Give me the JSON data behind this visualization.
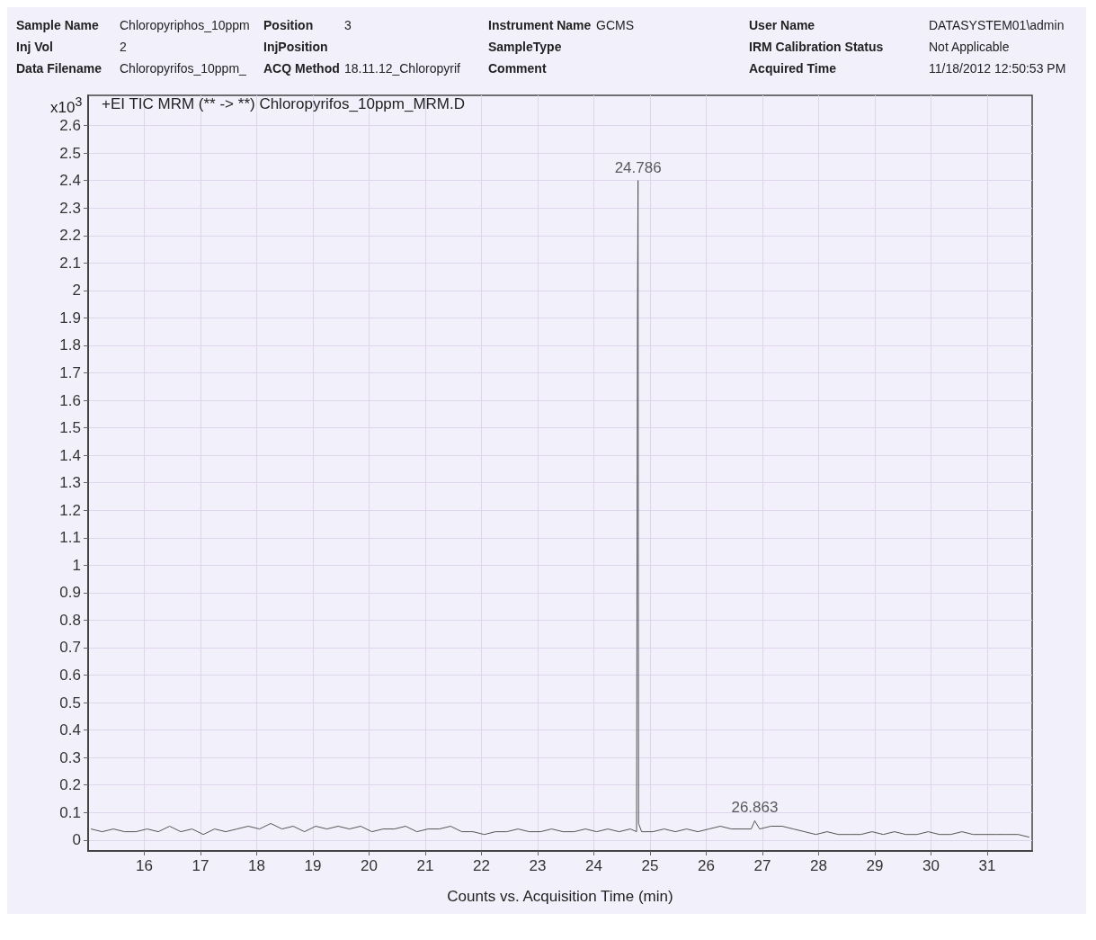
{
  "chart_data": {
    "type": "line",
    "title": "+EI TIC MRM (** -> **) Chloropyrifos_10ppm_MRM.D",
    "xlabel": "Counts vs. Acquisition Time (min)",
    "ylabel": "x10$^{3}$",
    "annotations": [
      "Sample Name",
      "Chloropyriphos_10ppm",
      "Position",
      "3",
      "Instrument Name",
      "GCMS",
      "User Name",
      "DATASYSTEM01\\admin",
      "Inj Vol",
      "2",
      "InjPosition",
      "SampleType",
      "IRM Calibration Status",
      "Not Applicable",
      "Data Filename",
      "Chloropyrifos_10ppm_",
      "ACQ Method",
      "18.11.12_Chloropyrif",
      "Comment",
      "Acquired Time",
      "11/18/2012 12:50:53 PM",
      {
        "text": "24.786",
        "x": 24.786,
        "y": 2.4
      },
      {
        "text": "26.863",
        "x": 26.863,
        "y": 0.07
      }
    ],
    "series": [
      {
        "color": "#555555",
        "x": [
          15.05,
          15.25,
          15.45,
          15.65,
          15.85,
          16.05,
          16.25,
          16.45,
          16.65,
          16.85,
          17.05,
          17.25,
          17.45,
          17.65,
          17.85,
          18.05,
          18.25,
          18.45,
          18.65,
          18.85,
          19.05,
          19.25,
          19.45,
          19.65,
          19.85,
          20.05,
          20.25,
          20.45,
          20.65,
          20.85,
          21.05,
          21.25,
          21.45,
          21.65,
          21.85,
          22.05,
          22.25,
          22.45,
          22.65,
          22.85,
          23.05,
          23.25,
          23.45,
          23.65,
          23.85,
          24.05,
          24.25,
          24.45,
          24.65,
          24.76,
          24.776,
          24.786,
          24.796,
          24.85,
          25.05,
          25.25,
          25.45,
          25.65,
          25.85,
          26.05,
          26.25,
          26.45,
          26.65,
          26.8,
          26.863,
          26.95,
          27.15,
          27.35,
          27.55,
          27.75,
          27.95,
          28.15,
          28.35,
          28.55,
          28.75,
          28.95,
          29.15,
          29.35,
          29.55,
          29.75,
          29.95,
          30.15,
          30.35,
          30.55,
          30.75,
          30.95,
          31.15,
          31.35,
          31.55,
          31.75
        ],
        "values": [
          0.04,
          0.03,
          0.04,
          0.03,
          0.03,
          0.04,
          0.03,
          0.05,
          0.03,
          0.04,
          0.02,
          0.04,
          0.03,
          0.04,
          0.05,
          0.04,
          0.06,
          0.04,
          0.05,
          0.03,
          0.05,
          0.04,
          0.05,
          0.04,
          0.05,
          0.03,
          0.04,
          0.04,
          0.05,
          0.03,
          0.04,
          0.04,
          0.05,
          0.03,
          0.03,
          0.02,
          0.03,
          0.03,
          0.04,
          0.03,
          0.03,
          0.04,
          0.03,
          0.03,
          0.04,
          0.03,
          0.04,
          0.03,
          0.04,
          0.03,
          1.9,
          2.4,
          0.06,
          0.03,
          0.03,
          0.04,
          0.03,
          0.04,
          0.03,
          0.04,
          0.05,
          0.04,
          0.04,
          0.04,
          0.07,
          0.04,
          0.05,
          0.05,
          0.04,
          0.03,
          0.02,
          0.03,
          0.02,
          0.02,
          0.02,
          0.03,
          0.02,
          0.03,
          0.02,
          0.02,
          0.03,
          0.02,
          0.02,
          0.03,
          0.02,
          0.02,
          0.02,
          0.02,
          0.02,
          0.01
        ]
      }
    ],
    "xlim": [
      15.0,
      31.8
    ],
    "ylim": [
      -0.04,
      2.71
    ],
    "xticks": [
      16,
      17,
      18,
      19,
      20,
      21,
      22,
      23,
      24,
      25,
      26,
      27,
      28,
      29,
      30,
      31
    ],
    "yticks": [
      0,
      0.1,
      0.2,
      0.3,
      0.4,
      0.5,
      0.6,
      0.7,
      0.8,
      0.9,
      1,
      1.1,
      1.2,
      1.3,
      1.4,
      1.5,
      1.6,
      1.7,
      1.8,
      1.9,
      2,
      2.1,
      2.2,
      2.3,
      2.4,
      2.5,
      2.6
    ],
    "grid": true,
    "marker": "none",
    "line_style": "solid"
  }
}
